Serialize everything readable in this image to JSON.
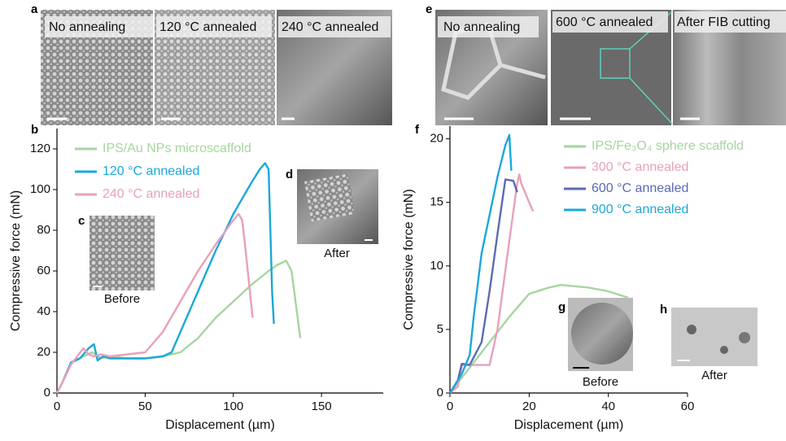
{
  "figure": {
    "panel_labels": [
      "a",
      "b",
      "c",
      "d",
      "e",
      "f",
      "g",
      "h"
    ],
    "a_captions": [
      "No annealing",
      "120 °C annealed",
      "240 °C annealed"
    ],
    "e_captions": [
      "No annealing",
      "600 °C annealed",
      "After FIB cutting"
    ],
    "inset_captions": [
      "Before",
      "After",
      "Before",
      "After"
    ]
  },
  "chart_data": [
    {
      "type": "line",
      "x_label": "Displacement (µm)",
      "y_label": "Compressive force (mN)",
      "xlim": [
        0,
        185
      ],
      "xticks": [
        0,
        50,
        100,
        150
      ],
      "ylim": [
        0,
        130
      ],
      "yticks": [
        0,
        20,
        40,
        60,
        80,
        100,
        120
      ],
      "series": [
        {
          "name": "IPS/Au NPs microscaffold",
          "color": "#a6d59f",
          "x": [
            0,
            3,
            8,
            15,
            20,
            25,
            30,
            40,
            50,
            60,
            70,
            80,
            90,
            100,
            110,
            120,
            125,
            130,
            133,
            136,
            138
          ],
          "values": [
            0,
            5,
            15,
            18,
            20,
            17,
            18,
            17,
            17,
            18,
            20,
            27,
            37,
            45,
            53,
            60,
            63,
            65,
            60,
            40,
            27
          ]
        },
        {
          "name": "120 °C annealed",
          "color": "#1ba8d8",
          "x": [
            0,
            3,
            8,
            13,
            18,
            21,
            23,
            26,
            30,
            40,
            50,
            60,
            65,
            70,
            80,
            90,
            100,
            110,
            115,
            118,
            120,
            121,
            122,
            123
          ],
          "values": [
            0,
            5,
            15,
            17,
            22,
            24,
            16,
            18,
            17,
            17,
            17,
            18,
            20,
            30,
            50,
            70,
            88,
            103,
            110,
            113,
            110,
            80,
            50,
            34
          ]
        },
        {
          "name": "240 °C annealed",
          "color": "#e8a0bc",
          "x": [
            0,
            3,
            8,
            15,
            18,
            21,
            25,
            30,
            40,
            50,
            60,
            70,
            80,
            90,
            100,
            103,
            105,
            107,
            110,
            111
          ],
          "values": [
            0,
            5,
            14,
            22,
            19,
            18,
            19,
            18,
            19,
            20,
            30,
            45,
            60,
            73,
            85,
            88,
            85,
            70,
            45,
            37
          ]
        }
      ]
    },
    {
      "type": "line",
      "x_label": "Displacement (µm)",
      "y_label": "Compressive force (mN)",
      "xlim": [
        0,
        60
      ],
      "xticks": [
        0,
        20,
        40,
        60
      ],
      "ylim": [
        0,
        21
      ],
      "yticks": [
        0,
        5,
        10,
        15,
        20
      ],
      "series": [
        {
          "name": "IPS/Fe₃O₄ sphere scaffold",
          "color": "#a6d59f",
          "x": [
            0,
            5,
            10,
            15,
            20,
            25,
            28,
            35,
            40,
            45
          ],
          "values": [
            0,
            2,
            4,
            6,
            7.8,
            8.3,
            8.5,
            8.3,
            8,
            7.5
          ]
        },
        {
          "name": "300 °C annealed",
          "color": "#e8a0bc",
          "x": [
            0,
            2,
            3,
            5,
            8,
            10,
            12,
            15,
            17,
            17.5,
            18,
            20,
            21
          ],
          "values": [
            0,
            0.5,
            2.2,
            2.2,
            2.2,
            2.2,
            5,
            12,
            16.5,
            17.2,
            16.5,
            15,
            14.3
          ]
        },
        {
          "name": "600 °C annealed",
          "color": "#5a6ab4",
          "x": [
            0,
            2,
            3,
            5,
            8,
            10,
            12,
            14,
            16,
            17
          ],
          "values": [
            0,
            1,
            2.3,
            2.2,
            4,
            8,
            12.5,
            16.8,
            16.7,
            15.8
          ]
        },
        {
          "name": "900 °C annealed",
          "color": "#1ba8d8",
          "x": [
            0,
            3,
            5,
            6,
            8,
            10,
            12,
            14,
            15,
            15.5
          ],
          "values": [
            0,
            1.5,
            3,
            6,
            11,
            14,
            17,
            19.5,
            20.3,
            17.5
          ]
        }
      ]
    }
  ]
}
